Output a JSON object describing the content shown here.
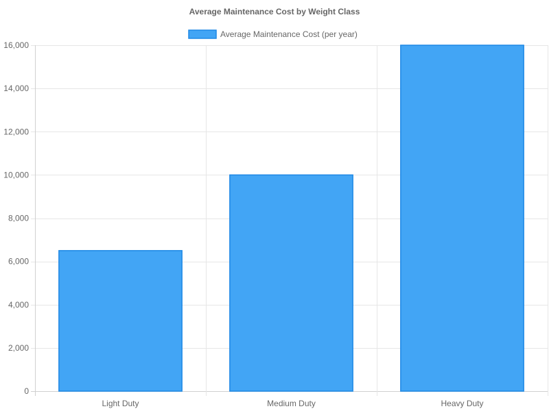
{
  "chart_data": {
    "type": "bar",
    "title": "Average Maintenance Cost by Weight Class",
    "legend": {
      "position": "top",
      "label": "Average Maintenance Cost (per year)"
    },
    "categories": [
      "Light Duty",
      "Medium Duty",
      "Heavy Duty"
    ],
    "series": [
      {
        "name": "Average Maintenance Cost (per year)",
        "values": [
          6500,
          10000,
          16000
        ],
        "color": "#42a5f5",
        "border_color": "#1e88e5"
      }
    ],
    "ylim": [
      0,
      16000
    ],
    "yticks": [
      "0",
      "2,000",
      "4,000",
      "6,000",
      "8,000",
      "10,000",
      "12,000",
      "14,000",
      "16,000"
    ],
    "ytick_values": [
      0,
      2000,
      4000,
      6000,
      8000,
      10000,
      12000,
      14000,
      16000
    ],
    "grid": true,
    "xlabel": "",
    "ylabel": ""
  }
}
